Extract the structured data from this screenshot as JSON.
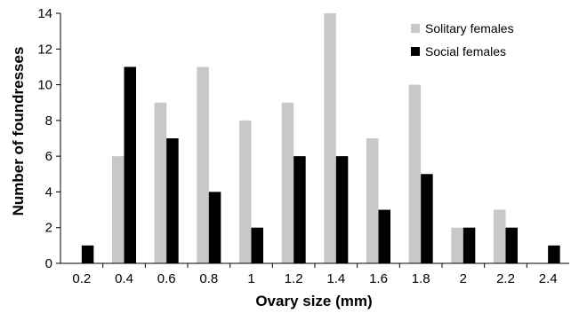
{
  "chart_data": {
    "type": "bar",
    "title": "",
    "xlabel": "Ovary size (mm)",
    "ylabel": "Number of foundresses",
    "categories": [
      "0.2",
      "0.4",
      "0.6",
      "0.8",
      "1",
      "1.2",
      "1.4",
      "1.6",
      "1.8",
      "2",
      "2.2",
      "2.4"
    ],
    "series": [
      {
        "name": "Solitary females",
        "color": "#c8c8c8",
        "values": [
          0,
          6,
          9,
          11,
          8,
          9,
          14,
          7,
          10,
          2,
          3,
          0
        ]
      },
      {
        "name": "Social females",
        "color": "#000000",
        "values": [
          1,
          11,
          7,
          4,
          2,
          6,
          6,
          3,
          5,
          2,
          2,
          1
        ]
      }
    ],
    "ylim": [
      0,
      14
    ],
    "yticks": [
      0,
      2,
      4,
      6,
      8,
      10,
      12,
      14
    ],
    "grid": false,
    "legend_position": "top-right"
  }
}
